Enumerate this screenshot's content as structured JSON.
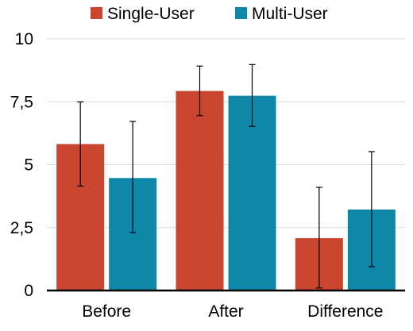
{
  "chart_data": {
    "type": "bar",
    "categories": [
      "Before",
      "After",
      "Difference"
    ],
    "series": [
      {
        "name": "Single-User",
        "color": "#c9452f",
        "values": [
          5.82,
          7.93,
          2.08
        ],
        "error_low": [
          4.15,
          6.95,
          0.1
        ],
        "error_high": [
          7.5,
          8.92,
          4.1
        ]
      },
      {
        "name": "Multi-User",
        "color": "#0e87a8",
        "values": [
          4.47,
          7.74,
          3.22
        ],
        "error_low": [
          2.3,
          6.52,
          0.95
        ],
        "error_high": [
          6.72,
          8.98,
          5.52
        ]
      }
    ],
    "yticks": [
      "0",
      "2,5",
      "5",
      "7,5",
      "10"
    ],
    "ytick_values": [
      0,
      2.5,
      5,
      7.5,
      10
    ],
    "ylim": [
      0,
      10
    ],
    "grid": true,
    "legend_position": "top-center",
    "title": "",
    "xlabel": "",
    "ylabel": ""
  }
}
